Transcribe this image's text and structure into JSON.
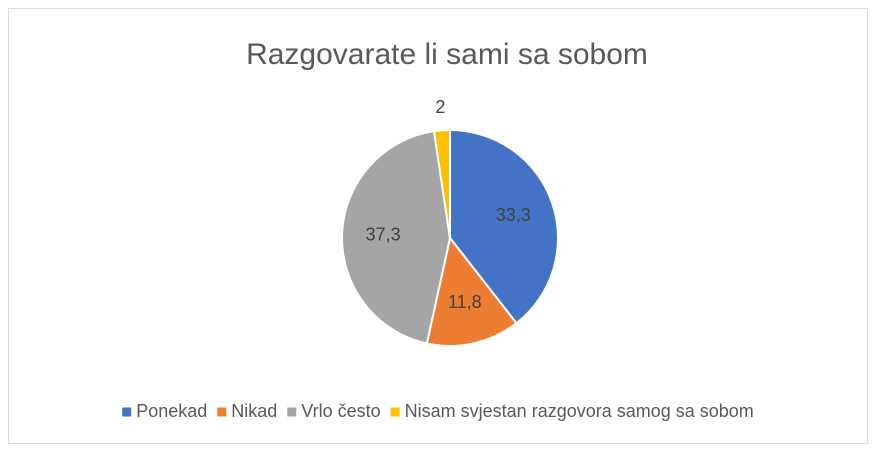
{
  "chart_data": {
    "type": "pie",
    "title": "Razgovarate li sami sa sobom",
    "categories": [
      "Ponekad",
      "Nikad",
      "Vrlo često",
      "Nisam svjestan razgovora samog sa sobom"
    ],
    "values": [
      33.3,
      11.8,
      37.3,
      2
    ],
    "value_labels": [
      "33,3",
      "11,8",
      "37,3",
      "2"
    ],
    "colors": [
      "#4472c4",
      "#ed7d31",
      "#a5a5a5",
      "#ffc000"
    ],
    "legend": "bottom"
  }
}
